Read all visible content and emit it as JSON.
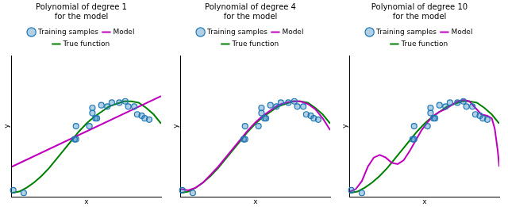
{
  "chart_data": [
    {
      "type": "line",
      "title": "Polynomial of degree 1\nfor the model",
      "x_label": "x",
      "y_label": "y",
      "xlim": [
        0,
        1
      ],
      "ylim": [
        -0.03,
        1.05
      ],
      "tick_labels": false,
      "grid": false,
      "legend": "top",
      "series": [
        {
          "name": "Model",
          "type": "line",
          "color": "#bf00bf",
          "line_style": "solid",
          "x": [
            0,
            1
          ],
          "values": [
            0.2,
            0.74
          ]
        },
        {
          "name": "True function",
          "type": "line",
          "color": "#008000",
          "line_style": "solid",
          "x": [
            0,
            0.05,
            0.1,
            0.15,
            0.2,
            0.25,
            0.3,
            0.35,
            0.4,
            0.45,
            0.5,
            0.55,
            0.6,
            0.65,
            0.7,
            0.75,
            0.8,
            0.85,
            0.9,
            0.95,
            1
          ],
          "values": [
            0.0,
            0.01,
            0.04,
            0.08,
            0.13,
            0.19,
            0.26,
            0.33,
            0.4,
            0.47,
            0.53,
            0.58,
            0.62,
            0.66,
            0.68,
            0.7,
            0.7,
            0.69,
            0.65,
            0.6,
            0.53
          ]
        },
        {
          "name": "Training samples",
          "type": "scatter",
          "color": "#1f77b4",
          "marker": "o",
          "x": [
            0.01,
            0.08,
            0.42,
            0.43,
            0.43,
            0.52,
            0.54,
            0.54,
            0.56,
            0.57,
            0.6,
            0.64,
            0.67,
            0.72,
            0.76,
            0.78,
            0.82,
            0.84,
            0.87,
            0.89,
            0.92
          ],
          "values": [
            0.02,
            0.0,
            0.41,
            0.41,
            0.51,
            0.51,
            0.65,
            0.61,
            0.57,
            0.57,
            0.67,
            0.66,
            0.69,
            0.69,
            0.7,
            0.66,
            0.66,
            0.6,
            0.59,
            0.57,
            0.56
          ]
        }
      ]
    },
    {
      "type": "line",
      "title": "Polynomial of degree 4\nfor the model",
      "x_label": "x",
      "y_label": "y",
      "xlim": [
        0,
        1
      ],
      "ylim": [
        -0.03,
        1.05
      ],
      "tick_labels": false,
      "grid": false,
      "legend": "top",
      "series": [
        {
          "name": "Model",
          "type": "line",
          "color": "#bf00bf",
          "line_style": "solid",
          "x": [
            0,
            0.05,
            0.1,
            0.15,
            0.2,
            0.25,
            0.3,
            0.35,
            0.4,
            0.45,
            0.5,
            0.55,
            0.6,
            0.65,
            0.7,
            0.75,
            0.8,
            0.85,
            0.9,
            0.95,
            1
          ],
          "values": [
            0.03,
            0.02,
            0.04,
            0.08,
            0.14,
            0.2,
            0.27,
            0.34,
            0.41,
            0.48,
            0.54,
            0.59,
            0.63,
            0.67,
            0.69,
            0.7,
            0.7,
            0.68,
            0.64,
            0.57,
            0.48
          ]
        },
        {
          "name": "True function",
          "type": "line",
          "color": "#008000",
          "line_style": "solid",
          "x": [
            0,
            0.05,
            0.1,
            0.15,
            0.2,
            0.25,
            0.3,
            0.35,
            0.4,
            0.45,
            0.5,
            0.55,
            0.6,
            0.65,
            0.7,
            0.75,
            0.8,
            0.85,
            0.9,
            0.95,
            1
          ],
          "values": [
            0.0,
            0.01,
            0.04,
            0.08,
            0.13,
            0.19,
            0.26,
            0.33,
            0.4,
            0.47,
            0.53,
            0.58,
            0.62,
            0.66,
            0.68,
            0.7,
            0.7,
            0.69,
            0.65,
            0.6,
            0.53
          ]
        },
        {
          "name": "Training samples",
          "type": "scatter",
          "color": "#1f77b4",
          "marker": "o",
          "x": [
            0.01,
            0.08,
            0.42,
            0.43,
            0.43,
            0.52,
            0.54,
            0.54,
            0.56,
            0.57,
            0.6,
            0.64,
            0.67,
            0.72,
            0.76,
            0.78,
            0.82,
            0.84,
            0.87,
            0.89,
            0.92
          ],
          "values": [
            0.02,
            0.0,
            0.41,
            0.41,
            0.51,
            0.51,
            0.65,
            0.61,
            0.57,
            0.57,
            0.67,
            0.66,
            0.69,
            0.69,
            0.7,
            0.66,
            0.66,
            0.6,
            0.59,
            0.57,
            0.56
          ]
        }
      ]
    },
    {
      "type": "line",
      "title": "Polynomial of degree 10\nfor the model",
      "x_label": "x",
      "y_label": "y",
      "xlim": [
        0,
        1
      ],
      "ylim": [
        -0.03,
        1.05
      ],
      "tick_labels": false,
      "grid": false,
      "legend": "top",
      "series": [
        {
          "name": "Model",
          "type": "line",
          "color": "#bf00bf",
          "line_style": "solid",
          "x": [
            0,
            0.04,
            0.08,
            0.12,
            0.16,
            0.2,
            0.24,
            0.28,
            0.32,
            0.36,
            0.4,
            0.44,
            0.48,
            0.52,
            0.56,
            0.6,
            0.64,
            0.68,
            0.72,
            0.76,
            0.8,
            0.84,
            0.88,
            0.92,
            0.95,
            0.97,
            0.99,
            1
          ],
          "values": [
            0.01,
            0.03,
            0.09,
            0.2,
            0.27,
            0.29,
            0.27,
            0.23,
            0.22,
            0.25,
            0.32,
            0.4,
            0.48,
            0.54,
            0.59,
            0.62,
            0.64,
            0.67,
            0.7,
            0.71,
            0.7,
            0.65,
            0.6,
            0.59,
            0.57,
            0.49,
            0.32,
            0.2
          ]
        },
        {
          "name": "True function",
          "type": "line",
          "color": "#008000",
          "line_style": "solid",
          "x": [
            0,
            0.05,
            0.1,
            0.15,
            0.2,
            0.25,
            0.3,
            0.35,
            0.4,
            0.45,
            0.5,
            0.55,
            0.6,
            0.65,
            0.7,
            0.75,
            0.8,
            0.85,
            0.9,
            0.95,
            1
          ],
          "values": [
            0.0,
            0.01,
            0.04,
            0.08,
            0.13,
            0.19,
            0.26,
            0.33,
            0.4,
            0.47,
            0.53,
            0.58,
            0.62,
            0.66,
            0.68,
            0.7,
            0.7,
            0.69,
            0.65,
            0.6,
            0.53
          ]
        },
        {
          "name": "Training samples",
          "type": "scatter",
          "color": "#1f77b4",
          "marker": "o",
          "x": [
            0.01,
            0.08,
            0.42,
            0.43,
            0.43,
            0.52,
            0.54,
            0.54,
            0.56,
            0.57,
            0.6,
            0.64,
            0.67,
            0.72,
            0.76,
            0.78,
            0.82,
            0.84,
            0.87,
            0.89,
            0.92
          ],
          "values": [
            0.02,
            0.0,
            0.41,
            0.41,
            0.51,
            0.51,
            0.65,
            0.61,
            0.57,
            0.57,
            0.67,
            0.66,
            0.69,
            0.69,
            0.7,
            0.66,
            0.66,
            0.6,
            0.59,
            0.57,
            0.56
          ]
        }
      ]
    }
  ]
}
